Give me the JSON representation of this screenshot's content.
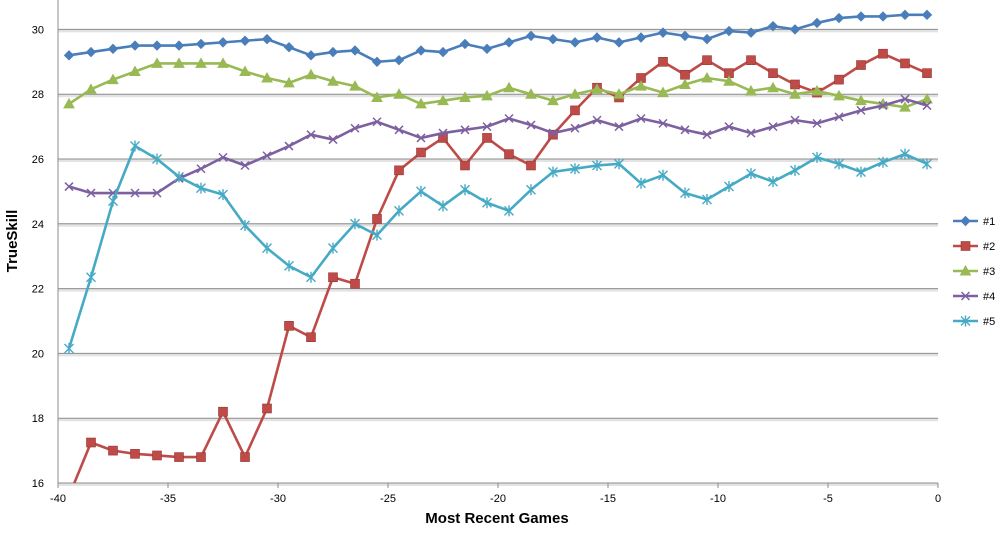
{
  "chart_data": {
    "type": "line",
    "xlabel": "Most Recent Games",
    "ylabel": "TrueSkill",
    "xlim": [
      -40,
      0
    ],
    "ylim": [
      16,
      31
    ],
    "x_ticks": [
      -40,
      -35,
      -30,
      -25,
      -20,
      -15,
      -10,
      -5,
      0
    ],
    "y_ticks": [
      16,
      18,
      20,
      22,
      24,
      26,
      28,
      30
    ],
    "grid": "horizontal",
    "legend_position": "right",
    "x": [
      -39.5,
      -38.5,
      -37.5,
      -36.5,
      -35.5,
      -34.5,
      -33.5,
      -32.5,
      -31.5,
      -30.5,
      -29.5,
      -28.5,
      -27.5,
      -26.5,
      -25.5,
      -24.5,
      -23.5,
      -22.5,
      -21.5,
      -20.5,
      -19.5,
      -18.5,
      -17.5,
      -16.5,
      -15.5,
      -14.5,
      -13.5,
      -12.5,
      -11.5,
      -10.5,
      -9.5,
      -8.5,
      -7.5,
      -6.5,
      -5.5,
      -4.5,
      -3.5,
      -2.5,
      -1.5,
      -0.5
    ],
    "series": [
      {
        "name": "#1",
        "color": "#4a7ebb",
        "marker": "diamond",
        "values": [
          29.2,
          29.3,
          29.4,
          29.5,
          29.5,
          29.5,
          29.55,
          29.6,
          29.65,
          29.7,
          29.45,
          29.2,
          29.3,
          29.35,
          29.0,
          29.05,
          29.35,
          29.3,
          29.55,
          29.4,
          29.6,
          29.8,
          29.7,
          29.6,
          29.75,
          29.6,
          29.75,
          29.9,
          29.8,
          29.7,
          29.95,
          29.9,
          30.1,
          30.0,
          30.2,
          30.35,
          30.4,
          30.4,
          30.45,
          30.45
        ]
      },
      {
        "name": "#2",
        "color": "#be4b48",
        "marker": "square",
        "values": [
          15.6,
          17.25,
          17.0,
          16.9,
          16.85,
          16.8,
          16.8,
          18.2,
          16.8,
          18.3,
          20.85,
          20.5,
          22.35,
          22.15,
          24.15,
          25.65,
          26.2,
          26.65,
          25.8,
          26.65,
          26.15,
          25.8,
          26.75,
          27.5,
          28.2,
          27.9,
          28.5,
          29.0,
          28.6,
          29.05,
          28.65,
          29.05,
          28.65,
          28.3,
          28.05,
          28.45,
          28.9,
          29.25,
          28.95,
          28.65
        ]
      },
      {
        "name": "#3",
        "color": "#98b954",
        "marker": "triangle",
        "values": [
          27.7,
          28.15,
          28.45,
          28.7,
          28.95,
          28.95,
          28.95,
          28.95,
          28.7,
          28.5,
          28.35,
          28.6,
          28.4,
          28.25,
          27.9,
          28.0,
          27.7,
          27.8,
          27.9,
          27.95,
          28.2,
          28.0,
          27.8,
          28.0,
          28.15,
          28.0,
          28.25,
          28.05,
          28.3,
          28.5,
          28.4,
          28.1,
          28.2,
          28.0,
          28.1,
          27.95,
          27.8,
          27.7,
          27.6,
          27.85
        ]
      },
      {
        "name": "#4",
        "color": "#7d60a0",
        "marker": "x",
        "values": [
          25.15,
          24.95,
          24.95,
          24.95,
          24.95,
          25.4,
          25.7,
          26.05,
          25.8,
          26.1,
          26.4,
          26.75,
          26.6,
          26.95,
          27.15,
          26.9,
          26.65,
          26.8,
          26.9,
          27.0,
          27.25,
          27.05,
          26.8,
          26.95,
          27.2,
          27.0,
          27.25,
          27.1,
          26.9,
          26.75,
          27.0,
          26.8,
          27.0,
          27.2,
          27.1,
          27.3,
          27.5,
          27.65,
          27.85,
          27.65
        ]
      },
      {
        "name": "#5",
        "color": "#46aac5",
        "marker": "star",
        "values": [
          20.15,
          22.35,
          24.7,
          26.4,
          26.0,
          25.45,
          25.1,
          24.9,
          23.95,
          23.25,
          22.7,
          22.35,
          23.25,
          24.0,
          23.65,
          24.4,
          25.0,
          24.55,
          25.05,
          24.65,
          24.4,
          25.05,
          25.6,
          25.7,
          25.8,
          25.85,
          25.25,
          25.5,
          24.95,
          24.75,
          25.15,
          25.55,
          25.3,
          25.65,
          26.05,
          25.85,
          25.6,
          25.9,
          26.15,
          25.85
        ]
      }
    ]
  }
}
